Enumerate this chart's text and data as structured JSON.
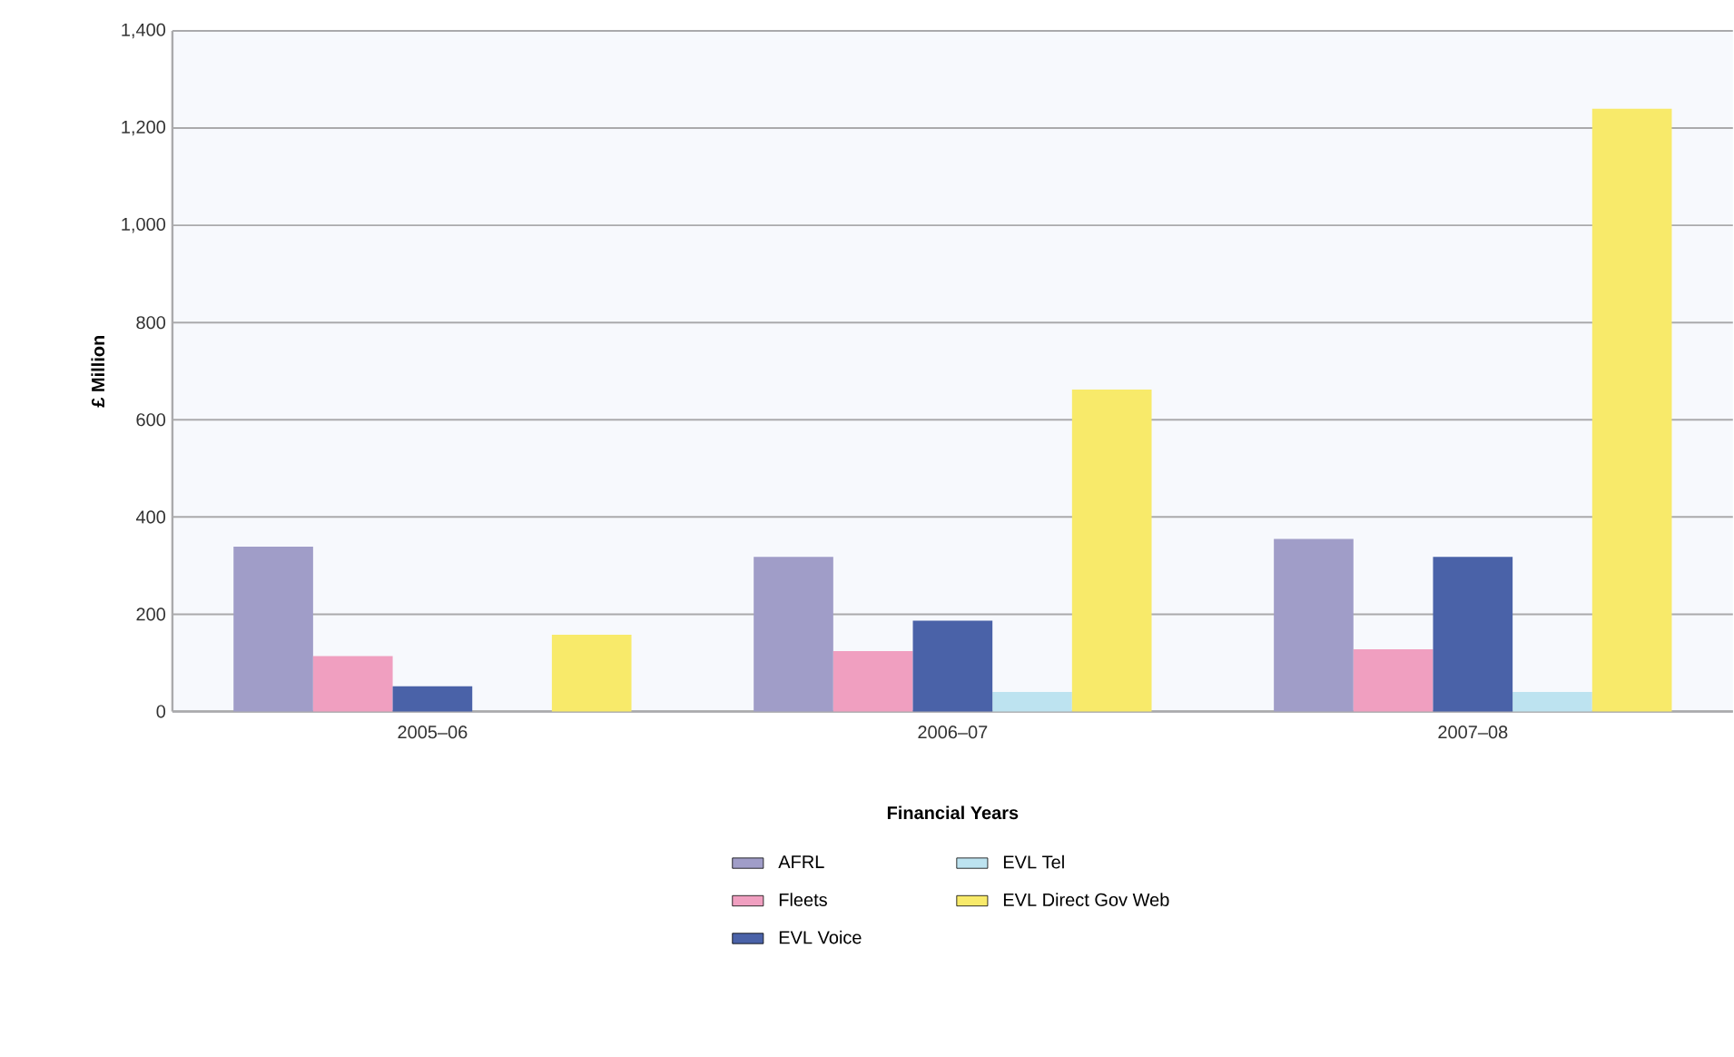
{
  "chart_data": {
    "type": "bar",
    "xlabel": "Financial Years",
    "ylabel": "£ Million",
    "categories": [
      "2005–06",
      "2006–07",
      "2007–08"
    ],
    "series": [
      {
        "name": "AFRL",
        "color": "#a09dc8",
        "values": [
          339,
          318,
          355
        ]
      },
      {
        "name": "Fleets",
        "color": "#f09fc0",
        "values": [
          114,
          124,
          128
        ]
      },
      {
        "name": "EVL Voice",
        "color": "#4a62a8",
        "values": [
          52,
          187,
          318
        ]
      },
      {
        "name": "EVL Tel",
        "color": "#bde3f0",
        "values": [
          null,
          40,
          40
        ]
      },
      {
        "name": "EVL Direct Gov Web",
        "color": "#f8ea6a",
        "values": [
          158,
          662,
          1240
        ]
      }
    ],
    "ylim": [
      0,
      1400
    ],
    "yticks": [
      0,
      {
        "value": 200,
        "label": "200"
      },
      {
        "value": 400,
        "label": "400"
      },
      {
        "value": 600,
        "label": "600"
      },
      {
        "value": 800,
        "label": "800"
      },
      {
        "value": 1000,
        "label": "1,000"
      },
      {
        "value": 1200,
        "label": "1,200"
      },
      {
        "value": 1400,
        "label": "1,400"
      }
    ],
    "grid": "y",
    "legend": "bottom"
  }
}
